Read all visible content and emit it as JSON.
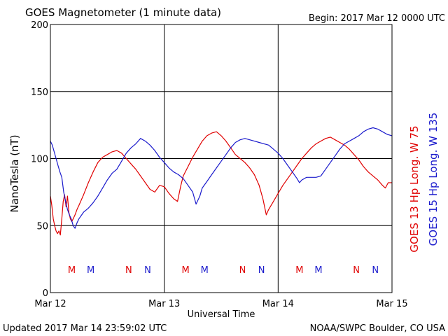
{
  "header": {
    "title": "GOES Magnetometer (1 minute data)",
    "begin": "Begin:  2017 Mar 12 0000 UTC"
  },
  "footer": {
    "updated": "Updated 2017 Mar 14 23:59:02 UTC",
    "credit": "NOAA/SWPC Boulder, CO USA"
  },
  "colors": {
    "red": "#e00000",
    "blue": "#1a1acc"
  },
  "chart_data": {
    "type": "line",
    "xlabel": "Universal Time",
    "ylabel": "NanoTesla (nT)",
    "x_ticks": [
      "Mar 12",
      "Mar 13",
      "Mar 14",
      "Mar 15"
    ],
    "y_ticks": [
      0,
      50,
      100,
      150,
      200
    ],
    "ylim": [
      0,
      200
    ],
    "xlim_hours": [
      0,
      72
    ],
    "grid": true,
    "legend_placement": "right, vertical",
    "series": [
      {
        "name": "GOES 13 Hp  Long. W 75",
        "color": "#e00000",
        "points": [
          [
            0,
            72
          ],
          [
            0.3,
            65
          ],
          [
            0.6,
            55
          ],
          [
            0.9,
            50
          ],
          [
            1.2,
            46
          ],
          [
            1.5,
            44
          ],
          [
            1.8,
            46
          ],
          [
            2.1,
            43
          ],
          [
            2.4,
            55
          ],
          [
            2.7,
            68
          ],
          [
            3,
            73
          ],
          [
            3.3,
            64
          ],
          [
            3.6,
            72
          ],
          [
            3.9,
            60
          ],
          [
            4.2,
            55
          ],
          [
            4.5,
            53
          ],
          [
            4.8,
            55
          ],
          [
            5.2,
            58
          ],
          [
            5.6,
            62
          ],
          [
            6,
            65
          ],
          [
            7,
            73
          ],
          [
            8,
            82
          ],
          [
            9,
            90
          ],
          [
            10,
            97
          ],
          [
            11,
            101
          ],
          [
            12,
            103
          ],
          [
            13,
            105
          ],
          [
            14,
            106
          ],
          [
            15,
            104
          ],
          [
            16,
            100
          ],
          [
            17,
            96
          ],
          [
            18,
            92
          ],
          [
            19,
            87
          ],
          [
            20,
            82
          ],
          [
            21,
            77
          ],
          [
            22,
            75
          ],
          [
            23,
            80
          ],
          [
            24,
            79
          ],
          [
            25,
            74
          ],
          [
            26,
            70
          ],
          [
            26.8,
            68
          ],
          [
            27.5,
            80
          ],
          [
            28,
            87
          ],
          [
            29,
            94
          ],
          [
            30,
            101
          ],
          [
            31,
            107
          ],
          [
            32,
            113
          ],
          [
            33,
            117
          ],
          [
            34,
            119
          ],
          [
            35,
            120
          ],
          [
            36,
            117
          ],
          [
            37,
            113
          ],
          [
            38,
            108
          ],
          [
            39,
            103
          ],
          [
            40,
            100
          ],
          [
            41,
            97
          ],
          [
            42,
            93
          ],
          [
            43,
            88
          ],
          [
            44,
            80
          ],
          [
            44.8,
            70
          ],
          [
            45.5,
            58
          ],
          [
            46,
            62
          ],
          [
            47,
            68
          ],
          [
            48,
            74
          ],
          [
            49,
            80
          ],
          [
            50,
            85
          ],
          [
            51,
            90
          ],
          [
            52,
            95
          ],
          [
            53,
            100
          ],
          [
            54,
            104
          ],
          [
            55,
            108
          ],
          [
            56,
            111
          ],
          [
            57,
            113
          ],
          [
            58,
            115
          ],
          [
            59,
            116
          ],
          [
            60,
            114
          ],
          [
            61,
            112
          ],
          [
            62,
            110
          ],
          [
            63,
            107
          ],
          [
            64,
            103
          ],
          [
            65,
            99
          ],
          [
            66,
            94
          ],
          [
            67,
            90
          ],
          [
            68,
            87
          ],
          [
            69,
            84
          ],
          [
            70,
            80
          ],
          [
            70.6,
            78
          ],
          [
            71.2,
            82
          ],
          [
            72,
            82
          ]
        ]
      },
      {
        "name": "GOES 15 Hp  Long. W 135",
        "color": "#1a1acc",
        "points": [
          [
            0,
            113
          ],
          [
            0.4,
            110
          ],
          [
            0.8,
            105
          ],
          [
            1.2,
            100
          ],
          [
            1.6,
            95
          ],
          [
            2,
            90
          ],
          [
            2.4,
            86
          ],
          [
            2.8,
            75
          ],
          [
            3.2,
            68
          ],
          [
            3.6,
            62
          ],
          [
            4,
            58
          ],
          [
            4.4,
            55
          ],
          [
            4.8,
            50
          ],
          [
            5.2,
            48
          ],
          [
            5.6,
            52
          ],
          [
            6,
            55
          ],
          [
            7,
            60
          ],
          [
            8,
            63
          ],
          [
            9,
            67
          ],
          [
            10,
            72
          ],
          [
            11,
            78
          ],
          [
            12,
            84
          ],
          [
            13,
            89
          ],
          [
            14,
            92
          ],
          [
            15,
            98
          ],
          [
            16,
            104
          ],
          [
            17,
            108
          ],
          [
            18,
            111
          ],
          [
            19,
            115
          ],
          [
            20,
            113
          ],
          [
            21,
            110
          ],
          [
            22,
            106
          ],
          [
            23,
            101
          ],
          [
            24,
            97
          ],
          [
            25,
            93
          ],
          [
            26,
            90
          ],
          [
            27,
            88
          ],
          [
            28,
            85
          ],
          [
            29,
            80
          ],
          [
            30,
            75
          ],
          [
            30.7,
            66
          ],
          [
            31.5,
            72
          ],
          [
            32,
            78
          ],
          [
            33,
            83
          ],
          [
            34,
            88
          ],
          [
            35,
            93
          ],
          [
            36,
            98
          ],
          [
            37,
            103
          ],
          [
            38,
            108
          ],
          [
            39,
            112
          ],
          [
            40,
            114
          ],
          [
            41,
            115
          ],
          [
            42,
            114
          ],
          [
            43,
            113
          ],
          [
            44,
            112
          ],
          [
            45,
            111
          ],
          [
            46,
            110
          ],
          [
            47,
            107
          ],
          [
            48,
            104
          ],
          [
            49,
            100
          ],
          [
            50,
            95
          ],
          [
            51,
            90
          ],
          [
            52,
            85
          ],
          [
            52.5,
            82
          ],
          [
            53,
            84
          ],
          [
            54,
            86
          ],
          [
            55,
            86
          ],
          [
            56,
            86
          ],
          [
            57,
            87
          ],
          [
            58,
            92
          ],
          [
            59,
            97
          ],
          [
            60,
            102
          ],
          [
            61,
            107
          ],
          [
            62,
            111
          ],
          [
            63,
            113
          ],
          [
            64,
            115
          ],
          [
            65,
            117
          ],
          [
            66,
            120
          ],
          [
            67,
            122
          ],
          [
            68,
            123
          ],
          [
            69,
            122
          ],
          [
            70,
            120
          ],
          [
            71,
            118
          ],
          [
            72,
            117
          ]
        ]
      }
    ],
    "markers": [
      {
        "label": "M",
        "hour": 4.5,
        "series": 0
      },
      {
        "label": "M",
        "hour": 8.5,
        "series": 1
      },
      {
        "label": "N",
        "hour": 16.5,
        "series": 0
      },
      {
        "label": "N",
        "hour": 20.5,
        "series": 1
      },
      {
        "label": "M",
        "hour": 28.5,
        "series": 0
      },
      {
        "label": "M",
        "hour": 32.5,
        "series": 1
      },
      {
        "label": "N",
        "hour": 40.5,
        "series": 0
      },
      {
        "label": "N",
        "hour": 44.5,
        "series": 1
      },
      {
        "label": "M",
        "hour": 52.5,
        "series": 0
      },
      {
        "label": "M",
        "hour": 56.5,
        "series": 1
      },
      {
        "label": "N",
        "hour": 64.5,
        "series": 0
      },
      {
        "label": "N",
        "hour": 68.5,
        "series": 1
      }
    ]
  }
}
